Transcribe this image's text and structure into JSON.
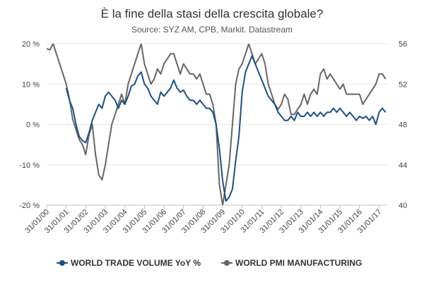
{
  "chart_data": {
    "type": "line",
    "title": "È la fine della stasi della crescita globale?",
    "subtitle": "Source: SYZ AM, CPB, Markit. Datastream",
    "x_ticks": [
      "31/01/00",
      "31/01/01",
      "31/01/02",
      "31/01/03",
      "31/01/04",
      "31/01/05",
      "31/01/06",
      "31/01/07",
      "31/01/08",
      "31/01/09",
      "31/01/10",
      "31/01/11",
      "31/01/12",
      "31/01/13",
      "31/01/14",
      "31/01/15",
      "31/01/16",
      "31/01/17"
    ],
    "xlim": [
      "2000-01",
      "2017-06"
    ],
    "y_left": {
      "ticks": [
        "20 %",
        "10 %",
        "0 %",
        "-10 %",
        "-20 %"
      ],
      "ylim": [
        -20,
        20
      ]
    },
    "y_right": {
      "ticks": [
        "56",
        "52",
        "48",
        "44",
        "40"
      ],
      "ylim": [
        40,
        56
      ]
    },
    "grid": "horizontal",
    "legend": "bottom",
    "series": [
      {
        "name": "WORLD TRADE VOLUME YoY %",
        "axis": "left",
        "color": "#1c4f85",
        "marker": "circle",
        "points": [
          [
            "2001-01",
            9
          ],
          [
            "2001-03",
            6
          ],
          [
            "2001-05",
            4
          ],
          [
            "2001-07",
            0
          ],
          [
            "2001-09",
            -3
          ],
          [
            "2001-11",
            -4
          ],
          [
            "2002-01",
            -4.5
          ],
          [
            "2002-03",
            -2
          ],
          [
            "2002-05",
            1
          ],
          [
            "2002-07",
            3
          ],
          [
            "2002-09",
            5
          ],
          [
            "2002-11",
            4
          ],
          [
            "2003-01",
            7
          ],
          [
            "2003-03",
            8
          ],
          [
            "2003-05",
            7
          ],
          [
            "2003-07",
            6
          ],
          [
            "2003-09",
            4
          ],
          [
            "2003-11",
            6
          ],
          [
            "2004-01",
            5
          ],
          [
            "2004-03",
            7
          ],
          [
            "2004-05",
            9.5
          ],
          [
            "2004-07",
            10
          ],
          [
            "2004-09",
            12
          ],
          [
            "2004-11",
            13
          ],
          [
            "2005-01",
            10
          ],
          [
            "2005-03",
            9
          ],
          [
            "2005-05",
            7
          ],
          [
            "2005-07",
            6
          ],
          [
            "2005-09",
            5
          ],
          [
            "2005-11",
            8
          ],
          [
            "2006-01",
            7
          ],
          [
            "2006-03",
            8
          ],
          [
            "2006-05",
            9
          ],
          [
            "2006-07",
            11
          ],
          [
            "2006-09",
            9
          ],
          [
            "2006-11",
            8
          ],
          [
            "2007-01",
            8.5
          ],
          [
            "2007-03",
            7
          ],
          [
            "2007-05",
            6
          ],
          [
            "2007-07",
            6
          ],
          [
            "2007-09",
            5
          ],
          [
            "2007-11",
            6
          ],
          [
            "2008-01",
            5
          ],
          [
            "2008-03",
            4
          ],
          [
            "2008-05",
            4
          ],
          [
            "2008-07",
            3
          ],
          [
            "2008-09",
            0
          ],
          [
            "2008-11",
            -6
          ],
          [
            "2009-01",
            -14
          ],
          [
            "2009-03",
            -19
          ],
          [
            "2009-05",
            -18
          ],
          [
            "2009-07",
            -16
          ],
          [
            "2009-09",
            -9
          ],
          [
            "2009-11",
            -3
          ],
          [
            "2010-01",
            8
          ],
          [
            "2010-03",
            13
          ],
          [
            "2010-05",
            15
          ],
          [
            "2010-07",
            17
          ],
          [
            "2010-09",
            15
          ],
          [
            "2010-11",
            13
          ],
          [
            "2011-01",
            11
          ],
          [
            "2011-03",
            9
          ],
          [
            "2011-05",
            7
          ],
          [
            "2011-07",
            6
          ],
          [
            "2011-09",
            5
          ],
          [
            "2011-11",
            3
          ],
          [
            "2012-01",
            2
          ],
          [
            "2012-03",
            1
          ],
          [
            "2012-05",
            1
          ],
          [
            "2012-07",
            2
          ],
          [
            "2012-09",
            1
          ],
          [
            "2012-11",
            3
          ],
          [
            "2013-01",
            2
          ],
          [
            "2013-03",
            2
          ],
          [
            "2013-05",
            3
          ],
          [
            "2013-07",
            2
          ],
          [
            "2013-09",
            3
          ],
          [
            "2013-11",
            2
          ],
          [
            "2014-01",
            3
          ],
          [
            "2014-03",
            2
          ],
          [
            "2014-05",
            3
          ],
          [
            "2014-07",
            3
          ],
          [
            "2014-09",
            4
          ],
          [
            "2014-11",
            3
          ],
          [
            "2015-01",
            4
          ],
          [
            "2015-03",
            3
          ],
          [
            "2015-05",
            2
          ],
          [
            "2015-07",
            3
          ],
          [
            "2015-09",
            2
          ],
          [
            "2015-11",
            1
          ],
          [
            "2016-01",
            2
          ],
          [
            "2016-03",
            1.5
          ],
          [
            "2016-05",
            2
          ],
          [
            "2016-07",
            1
          ],
          [
            "2016-09",
            2
          ],
          [
            "2016-11",
            0
          ],
          [
            "2017-01",
            3
          ],
          [
            "2017-03",
            4
          ],
          [
            "2017-05",
            3
          ]
        ]
      },
      {
        "name": "WORLD PMI MANUFACTURING",
        "axis": "right",
        "color": "#666666",
        "marker": "circle",
        "points": [
          [
            "2000-01",
            55.5
          ],
          [
            "2000-03",
            55.4
          ],
          [
            "2000-05",
            56
          ],
          [
            "2000-07",
            55
          ],
          [
            "2000-09",
            54
          ],
          [
            "2000-11",
            53
          ],
          [
            "2001-01",
            52
          ],
          [
            "2001-03",
            50.5
          ],
          [
            "2001-05",
            48.5
          ],
          [
            "2001-07",
            47.5
          ],
          [
            "2001-09",
            46.5
          ],
          [
            "2001-11",
            46
          ],
          [
            "2002-01",
            45
          ],
          [
            "2002-03",
            47
          ],
          [
            "2002-05",
            48
          ],
          [
            "2002-07",
            45
          ],
          [
            "2002-09",
            43
          ],
          [
            "2002-11",
            42.5
          ],
          [
            "2003-01",
            44
          ],
          [
            "2003-03",
            46
          ],
          [
            "2003-05",
            48
          ],
          [
            "2003-07",
            49
          ],
          [
            "2003-09",
            50
          ],
          [
            "2003-11",
            51
          ],
          [
            "2004-01",
            50
          ],
          [
            "2004-03",
            52
          ],
          [
            "2004-05",
            53
          ],
          [
            "2004-07",
            54
          ],
          [
            "2004-09",
            55
          ],
          [
            "2004-11",
            56
          ],
          [
            "2005-01",
            54
          ],
          [
            "2005-03",
            53
          ],
          [
            "2005-05",
            52
          ],
          [
            "2005-07",
            52.5
          ],
          [
            "2005-09",
            53.5
          ],
          [
            "2005-11",
            53
          ],
          [
            "2006-01",
            54
          ],
          [
            "2006-03",
            54.5
          ],
          [
            "2006-05",
            55
          ],
          [
            "2006-07",
            55
          ],
          [
            "2006-09",
            54
          ],
          [
            "2006-11",
            53
          ],
          [
            "2007-01",
            54
          ],
          [
            "2007-03",
            53.5
          ],
          [
            "2007-05",
            53
          ],
          [
            "2007-07",
            53
          ],
          [
            "2007-09",
            52.5
          ],
          [
            "2007-11",
            53
          ],
          [
            "2008-01",
            52
          ],
          [
            "2008-03",
            51
          ],
          [
            "2008-05",
            51
          ],
          [
            "2008-07",
            50
          ],
          [
            "2008-09",
            48
          ],
          [
            "2008-11",
            42
          ],
          [
            "2009-01",
            40
          ],
          [
            "2009-03",
            42
          ],
          [
            "2009-05",
            44
          ],
          [
            "2009-07",
            48
          ],
          [
            "2009-09",
            52
          ],
          [
            "2009-11",
            53.5
          ],
          [
            "2010-01",
            54
          ],
          [
            "2010-03",
            55
          ],
          [
            "2010-05",
            56
          ],
          [
            "2010-07",
            55
          ],
          [
            "2010-09",
            54
          ],
          [
            "2010-11",
            54.5
          ],
          [
            "2011-01",
            55
          ],
          [
            "2011-03",
            54
          ],
          [
            "2011-05",
            52
          ],
          [
            "2011-07",
            51
          ],
          [
            "2011-09",
            50
          ],
          [
            "2011-11",
            49.5
          ],
          [
            "2012-01",
            50
          ],
          [
            "2012-03",
            51
          ],
          [
            "2012-05",
            50.5
          ],
          [
            "2012-07",
            49
          ],
          [
            "2012-09",
            49
          ],
          [
            "2012-11",
            49.5
          ],
          [
            "2013-01",
            50
          ],
          [
            "2013-03",
            51
          ],
          [
            "2013-05",
            50
          ],
          [
            "2013-07",
            51
          ],
          [
            "2013-09",
            51.5
          ],
          [
            "2013-11",
            51
          ],
          [
            "2014-01",
            53
          ],
          [
            "2014-03",
            53.5
          ],
          [
            "2014-05",
            52.5
          ],
          [
            "2014-07",
            53
          ],
          [
            "2014-09",
            52.5
          ],
          [
            "2014-11",
            52
          ],
          [
            "2015-01",
            51.5
          ],
          [
            "2015-03",
            52
          ],
          [
            "2015-05",
            51
          ],
          [
            "2015-07",
            51
          ],
          [
            "2015-09",
            51
          ],
          [
            "2015-11",
            51
          ],
          [
            "2016-01",
            51
          ],
          [
            "2016-03",
            50
          ],
          [
            "2016-05",
            50.5
          ],
          [
            "2016-07",
            51
          ],
          [
            "2016-09",
            51.5
          ],
          [
            "2016-11",
            52
          ],
          [
            "2017-01",
            53
          ],
          [
            "2017-03",
            53
          ],
          [
            "2017-05",
            52.5
          ]
        ]
      }
    ]
  }
}
